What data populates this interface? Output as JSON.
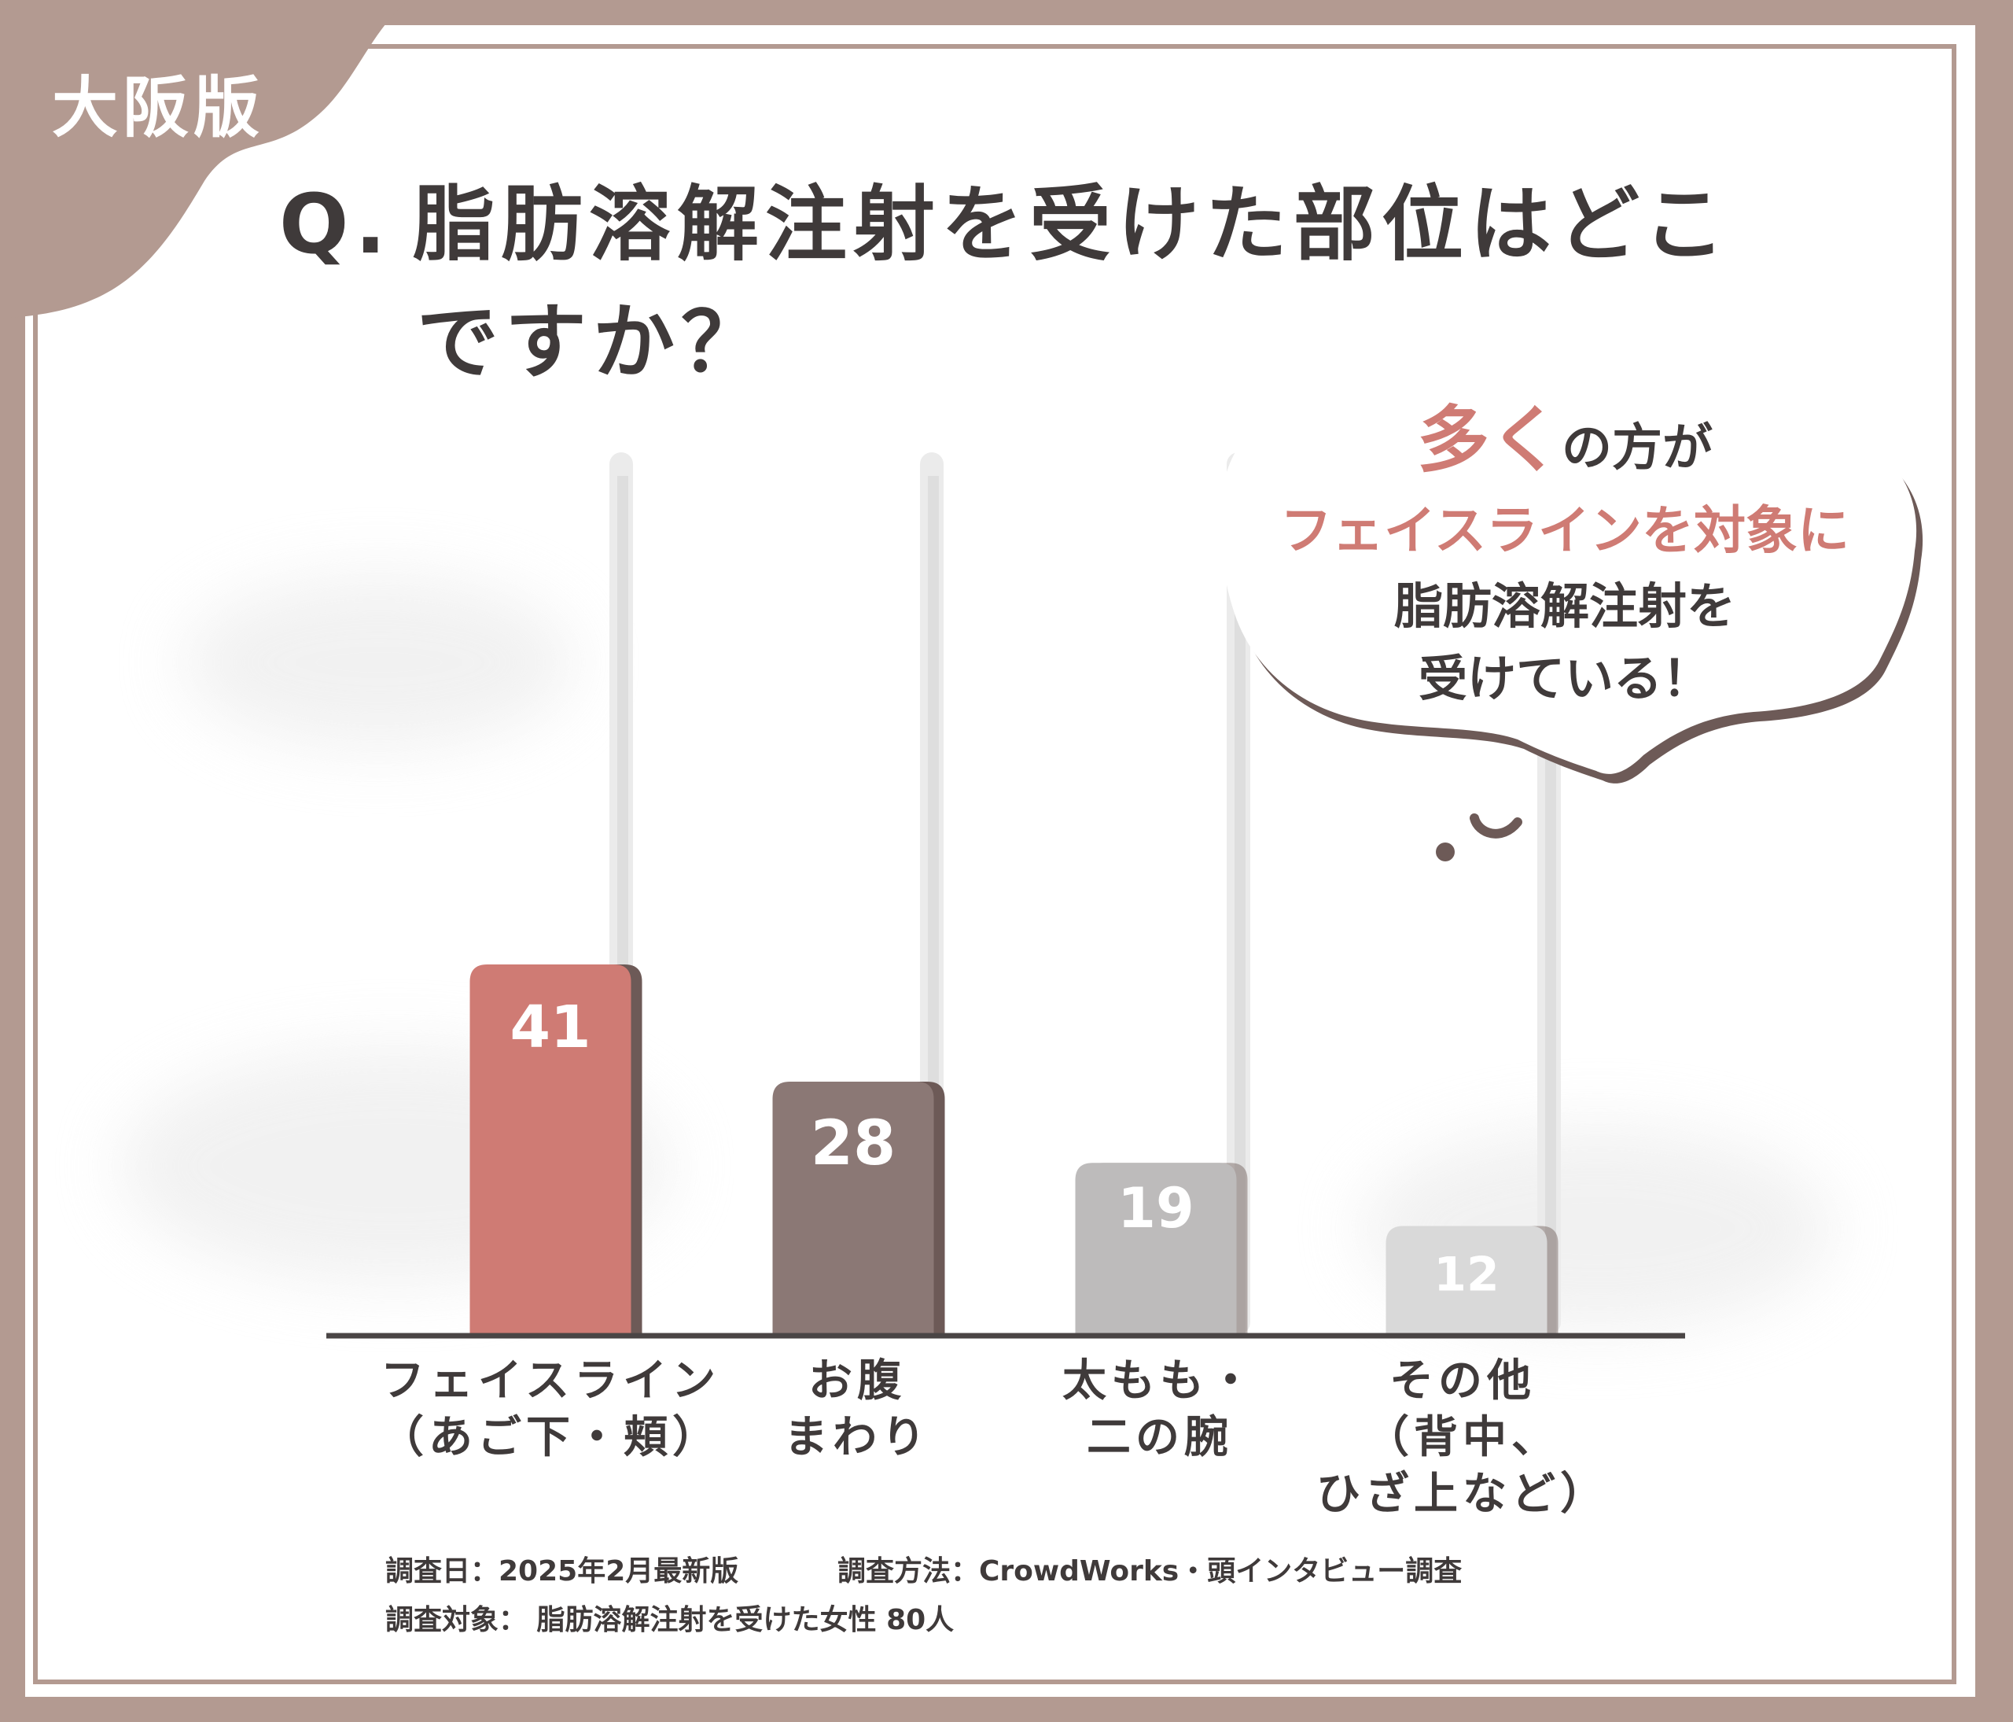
{
  "badge": "大阪版",
  "question": {
    "prefix": "Q.",
    "line1": "脂肪溶解注射を受けた部位はどこ",
    "line2": "ですか？"
  },
  "callout": {
    "big": "多く",
    "line1_rest": "の方が",
    "line2": "フェイスラインを対象に",
    "line3": "脂肪溶解注射を",
    "line4": "受けている！"
  },
  "chart_data": {
    "type": "bar",
    "categories": [
      "フェイスライン\n（あご下・頬）",
      "お腹\nまわり",
      "太もも・\n二の腕",
      "その他\n（背中、\nひざ上など）"
    ],
    "values": [
      41,
      28,
      19,
      12
    ],
    "value_labels": [
      "41",
      "28",
      "19",
      "12"
    ],
    "ylim": [
      0,
      41
    ],
    "colors": [
      "#cf7b74",
      "#8b7875",
      "#bdbbbb",
      "#d9d9d9"
    ],
    "grid": false
  },
  "footnotes": {
    "date": "調査日：2025年2月最新版",
    "method": "調査方法：CrowdWorks・頭インタビュー調査",
    "target": "調査対象： 脂肪溶解注射を受けた女性 80人"
  }
}
